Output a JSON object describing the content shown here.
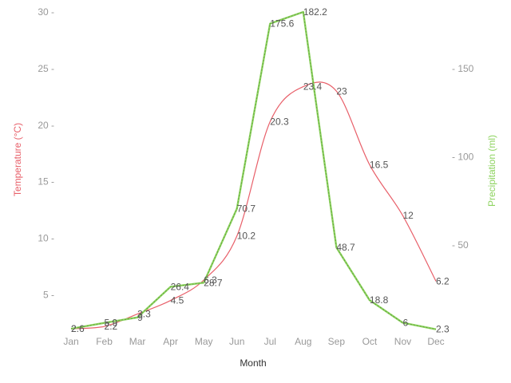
{
  "chart_data": {
    "type": "line",
    "categories": [
      "Jan",
      "Feb",
      "Mar",
      "Apr",
      "May",
      "Jun",
      "Jul",
      "Aug",
      "Sep",
      "Oct",
      "Nov",
      "Dec"
    ],
    "xlabel": "Month",
    "y_left": {
      "label": "Temperature (°C)",
      "color": "#e8606a",
      "range": [
        2,
        30
      ],
      "ticks": [
        5,
        10,
        15,
        20,
        25,
        30
      ]
    },
    "y_right": {
      "label": "Precipitation (ml)",
      "color": "#8dd35f",
      "range": [
        2.6,
        182.2
      ],
      "ticks": [
        50,
        100,
        150
      ]
    },
    "series": [
      {
        "axis": "left",
        "color": "#e8606a",
        "smooth": true,
        "values": [
          2,
          2.2,
          3.3,
          4.5,
          6.3,
          10.2,
          20.3,
          23.4,
          23,
          16.5,
          12,
          6.2
        ],
        "labels": [
          "2",
          "2.2",
          "3.3",
          "4.5",
          "6.3",
          "10.2",
          "20.3",
          "23.4",
          "23",
          "16.5",
          "12",
          "6.2"
        ]
      },
      {
        "axis": "right",
        "color": "#8dd35f",
        "smooth": false,
        "values": [
          2.6,
          5.9,
          9,
          26.4,
          28.7,
          70.7,
          175.6,
          182.2,
          48.7,
          18.8,
          6,
          2.3
        ],
        "labels": [
          "2.6",
          "5.9",
          "9",
          "26.4",
          "28.7",
          "70.7",
          "175.6",
          "182.2",
          "48.7",
          "18.8",
          "6",
          "2.3"
        ]
      }
    ]
  }
}
